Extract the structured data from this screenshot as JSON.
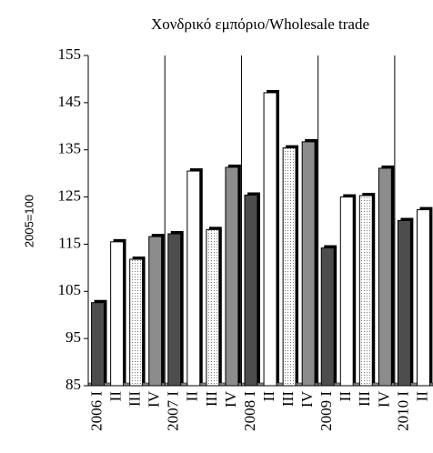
{
  "chart_data": {
    "type": "bar",
    "title": "Χονδρικό εμπόριο/Wholesale trade",
    "y_label": "2005=100",
    "categories": [
      "2006 I",
      "II",
      "III",
      "IV",
      "2007 I",
      "II",
      "III",
      "IV",
      "2008 I",
      "II",
      "III",
      "IV",
      "2009 I",
      "II",
      "III",
      "IV",
      "2010 I",
      "II"
    ],
    "values": [
      102.6,
      115.5,
      111.8,
      116.6,
      117.2,
      130.5,
      118.1,
      131.3,
      125.4,
      147.1,
      135.4,
      136.7,
      114.2,
      125.0,
      125.3,
      131.1,
      120.0,
      122.3
    ],
    "fills": [
      "#4d4d4d",
      "#ffffff",
      "dots",
      "#8c8c8c",
      "#4d4d4d",
      "#ffffff",
      "dots",
      "#8c8c8c",
      "#4d4d4d",
      "#ffffff",
      "dots",
      "#8c8c8c",
      "#4d4d4d",
      "#ffffff",
      "dots",
      "#8c8c8c",
      "#4d4d4d",
      "#ffffff"
    ],
    "ylim": [
      85,
      155
    ],
    "yticks": [
      85,
      95,
      105,
      115,
      125,
      135,
      145,
      155
    ]
  }
}
